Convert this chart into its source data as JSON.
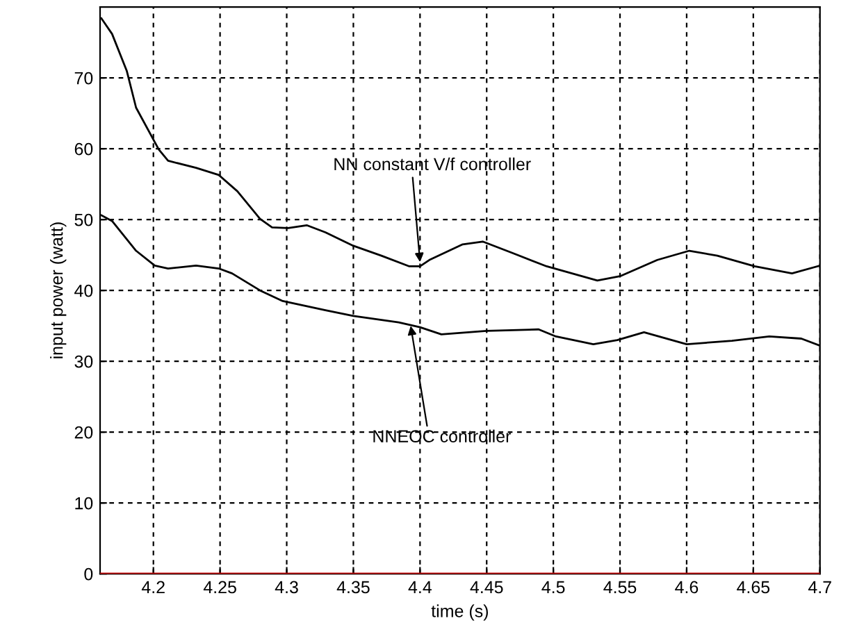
{
  "chart_data": {
    "type": "line",
    "xlabel": "time (s)",
    "ylabel": "input power (watt)",
    "xlim": [
      4.16,
      4.7
    ],
    "ylim": [
      0,
      80
    ],
    "xticks": [
      4.2,
      4.25,
      4.3,
      4.35,
      4.4,
      4.45,
      4.5,
      4.55,
      4.6,
      4.65,
      4.7
    ],
    "yticks": [
      0,
      10,
      20,
      30,
      40,
      50,
      60,
      70
    ],
    "grid": true,
    "line_style": "solid",
    "series": [
      {
        "color": "#000000",
        "x": [
          4.161,
          4.169,
          4.18,
          4.187,
          4.204,
          4.211,
          4.232,
          4.249,
          4.263,
          4.28,
          4.289,
          4.301,
          4.315,
          4.329,
          4.35,
          4.371,
          4.392,
          4.4,
          4.407,
          4.432,
          4.447,
          4.469,
          4.495,
          4.533,
          4.55,
          4.578,
          4.602,
          4.623,
          4.651,
          4.679,
          4.7
        ],
        "values": [
          78.4,
          76.2,
          71,
          65.8,
          59.9,
          58.3,
          57.3,
          56.3,
          54.0,
          50.1,
          48.9,
          48.8,
          49.2,
          48.2,
          46.3,
          44.9,
          43.4,
          43.4,
          44.3,
          46.5,
          46.9,
          45.3,
          43.4,
          41.4,
          42.0,
          44.3,
          45.6,
          44.9,
          43.4,
          42.4,
          43.5
        ]
      },
      {
        "color": "#000000",
        "x": [
          4.161,
          4.169,
          4.187,
          4.201,
          4.211,
          4.232,
          4.249,
          4.259,
          4.28,
          4.297,
          4.329,
          4.35,
          4.384,
          4.4,
          4.416,
          4.45,
          4.489,
          4.502,
          4.53,
          4.548,
          4.568,
          4.6,
          4.634,
          4.662,
          4.686,
          4.7
        ],
        "values": [
          50.6,
          49.8,
          45.6,
          43.5,
          43.1,
          43.5,
          43.1,
          42.4,
          40.0,
          38.5,
          37.2,
          36.4,
          35.5,
          34.8,
          33.8,
          34.3,
          34.5,
          33.5,
          32.4,
          33.0,
          34.1,
          32.4,
          32.9,
          33.5,
          33.2,
          32.2
        ]
      }
    ],
    "ref_lines": [
      {
        "axis": "y",
        "value": 0,
        "color": "#c00000"
      }
    ],
    "annotations": [
      {
        "text": "NN constant V/f controller",
        "x": 4.4,
        "y": 44.0
      },
      {
        "text": "NNEOC controller",
        "x": 4.393,
        "y": 35.0
      }
    ]
  }
}
